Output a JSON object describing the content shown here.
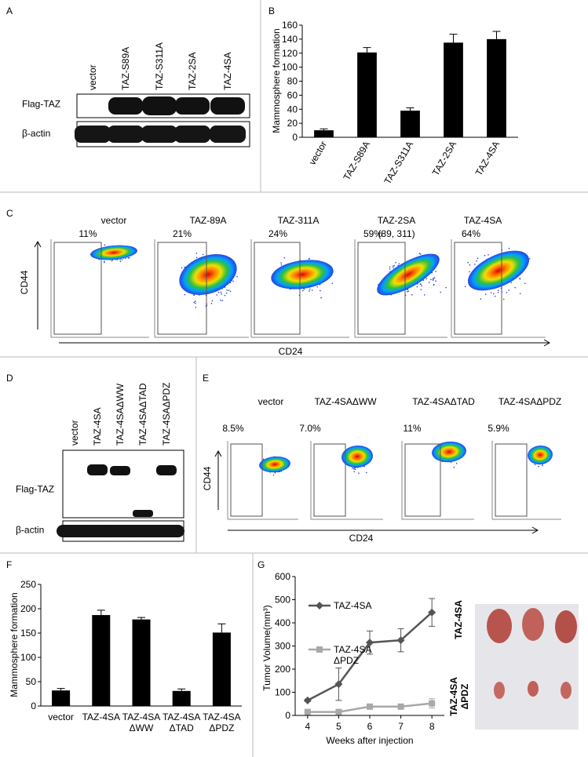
{
  "panel_labels": [
    "A",
    "B",
    "C",
    "D",
    "E",
    "F",
    "G"
  ],
  "blot_a": {
    "lanes": [
      "vector",
      "TAZ-S89A",
      "TAZ-S311A",
      "TAZ-2SA",
      "TAZ-4SA"
    ],
    "rows": [
      "Flag-TAZ",
      "β-actin"
    ]
  },
  "flow_c": {
    "plots": [
      {
        "title": "vector",
        "percent": "11%"
      },
      {
        "title": "TAZ-89A",
        "percent": "21%"
      },
      {
        "title": "TAZ-311A",
        "percent": "24%"
      },
      {
        "title": "TAZ-2SA",
        "subtitle": "(89, 311)",
        "percent": "59%"
      },
      {
        "title": "TAZ-4SA",
        "percent": "64%"
      }
    ],
    "y_label": "CD44",
    "x_label": "CD24"
  },
  "blot_d": {
    "lanes": [
      "vector",
      "TAZ-4SA",
      "TAZ-4SAΔWW",
      "TAZ-4SAΔTAD",
      "TAZ-4SAΔPDZ"
    ],
    "rows": [
      "Flag-TAZ",
      "β-actin"
    ]
  },
  "flow_e": {
    "plots": [
      {
        "title": "vector",
        "percent": "8.5%"
      },
      {
        "title": "TAZ-4SAΔWW",
        "percent": "7.0%"
      },
      {
        "title": "TAZ-4SAΔTAD",
        "percent": "11%"
      },
      {
        "title": "TAZ-4SAΔPDZ",
        "percent": "5.9%"
      }
    ],
    "y_label": "CD44",
    "x_label": "CD24"
  },
  "photo_g": {
    "labels": [
      "TAZ-4SA",
      "TAZ-4SA\nΔPDZ"
    ]
  },
  "chart_data": [
    {
      "type": "bar",
      "y_label": "Mammosphere formation",
      "categories": [
        "vector",
        "TAZ-S89A",
        "TAZ-S311A",
        "TAZ-2SA",
        "TAZ-4SA"
      ],
      "values": [
        10,
        121,
        38,
        135,
        140
      ],
      "errors": [
        2,
        7,
        4,
        12,
        11
      ],
      "color": "#000000",
      "ylim": [
        0,
        160
      ],
      "yticks": [
        0,
        20,
        40,
        60,
        80,
        100,
        120,
        140,
        160
      ]
    },
    {
      "type": "bar",
      "y_label": "Mammosphere formation",
      "categories": [
        "vector",
        "TAZ-4SA",
        "TAZ-4SA\nΔWW",
        "TAZ-4SA\nΔTAD",
        "TAZ-4SA\nΔPDZ"
      ],
      "values": [
        32,
        187,
        178,
        31,
        151
      ],
      "errors": [
        4,
        10,
        4,
        4,
        18
      ],
      "color": "#000000",
      "ylim": [
        0,
        250
      ],
      "yticks": [
        0,
        50,
        100,
        150,
        200,
        250
      ]
    },
    {
      "type": "line",
      "y_label": "Tumor Volume(mm³)",
      "x_label": "Weeks after injection",
      "x": [
        4,
        5,
        6,
        7,
        8
      ],
      "series": [
        {
          "name": "TAZ-4SA",
          "color": "#555555",
          "marker": "diamond",
          "values": [
            65,
            135,
            315,
            325,
            445
          ],
          "errors": [
            5,
            70,
            50,
            50,
            60
          ]
        },
        {
          "name": "TAZ-4SA\nΔPDZ",
          "color": "#a8a8a8",
          "marker": "square",
          "values": [
            15,
            15,
            38,
            38,
            52
          ],
          "errors": [
            3,
            3,
            10,
            10,
            20
          ]
        }
      ],
      "xlim": [
        3.6,
        8.4
      ],
      "xticks": [
        4,
        5,
        6,
        7,
        8
      ],
      "ylim": [
        0,
        600
      ],
      "yticks": [
        0,
        100,
        200,
        300,
        400,
        500,
        600
      ]
    }
  ]
}
